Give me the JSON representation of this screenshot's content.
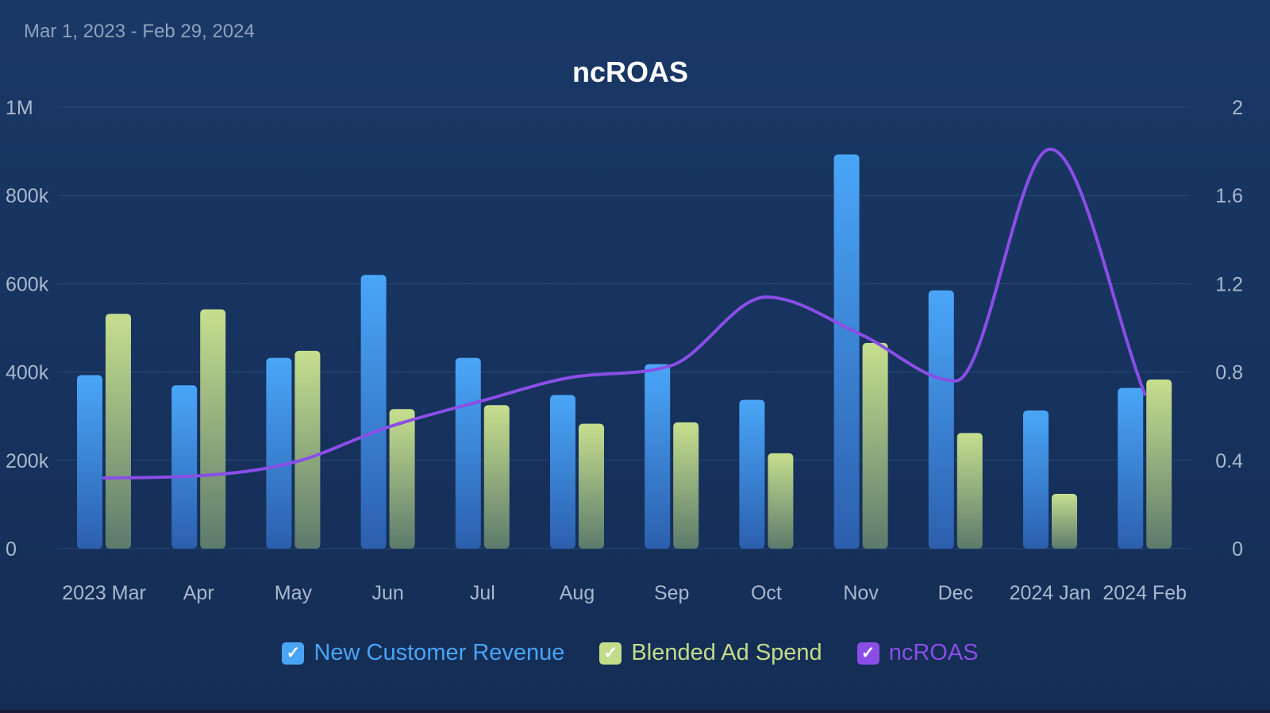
{
  "header": {
    "date_range": "Mar 1, 2023 - Feb 29, 2024"
  },
  "colors": {
    "revenue": "#4aa3f5",
    "ad_spend": "#c3dc8a",
    "ncroas": "#8a4ee6",
    "gridline": "#2a4a78",
    "axis_text": "#a9b8cd"
  },
  "legend": [
    {
      "label": "New Customer Revenue",
      "color": "#4aa3f5",
      "checked": true,
      "icon": "checkbox-checked-icon"
    },
    {
      "label": "Blended Ad Spend",
      "color": "#c3dc8a",
      "checked": true,
      "icon": "checkbox-checked-icon"
    },
    {
      "label": "ncROAS",
      "color": "#8a4ee6",
      "checked": true,
      "icon": "checkbox-checked-icon"
    }
  ],
  "chart_data": {
    "type": "bar",
    "title": "ncROAS",
    "categories": [
      "2023 Mar",
      "Apr",
      "May",
      "Jun",
      "Jul",
      "Aug",
      "Sep",
      "Oct",
      "Nov",
      "Dec",
      "2024 Jan",
      "2024 Feb"
    ],
    "series": [
      {
        "name": "New Customer Revenue",
        "type": "bar",
        "axis": "left",
        "values": [
          393000,
          370000,
          432000,
          620000,
          432000,
          348000,
          418000,
          337000,
          893000,
          585000,
          313000,
          364000
        ]
      },
      {
        "name": "Blended Ad Spend",
        "type": "bar",
        "axis": "left",
        "values": [
          532000,
          542000,
          448000,
          316000,
          325000,
          283000,
          286000,
          216000,
          466000,
          262000,
          124000,
          383000
        ]
      },
      {
        "name": "ncROAS",
        "type": "line",
        "axis": "right",
        "smooth": true,
        "values": [
          0.32,
          0.33,
          0.39,
          0.55,
          0.67,
          0.78,
          0.83,
          1.14,
          0.97,
          0.76,
          1.81,
          0.7
        ]
      }
    ],
    "y_left": {
      "range": [
        0,
        1000000
      ],
      "ticks": [
        0,
        200000,
        400000,
        600000,
        800000,
        1000000
      ],
      "tick_labels": [
        "0",
        "200k",
        "400k",
        "600k",
        "800k",
        "1M"
      ]
    },
    "y_right": {
      "range": [
        0,
        2
      ],
      "ticks": [
        0,
        0.4,
        0.8,
        1.2,
        1.6,
        2
      ],
      "tick_labels": [
        "0",
        "0.4",
        "0.8",
        "1.2",
        "1.6",
        "2"
      ]
    },
    "grid": true,
    "legend_position": "bottom-center"
  }
}
